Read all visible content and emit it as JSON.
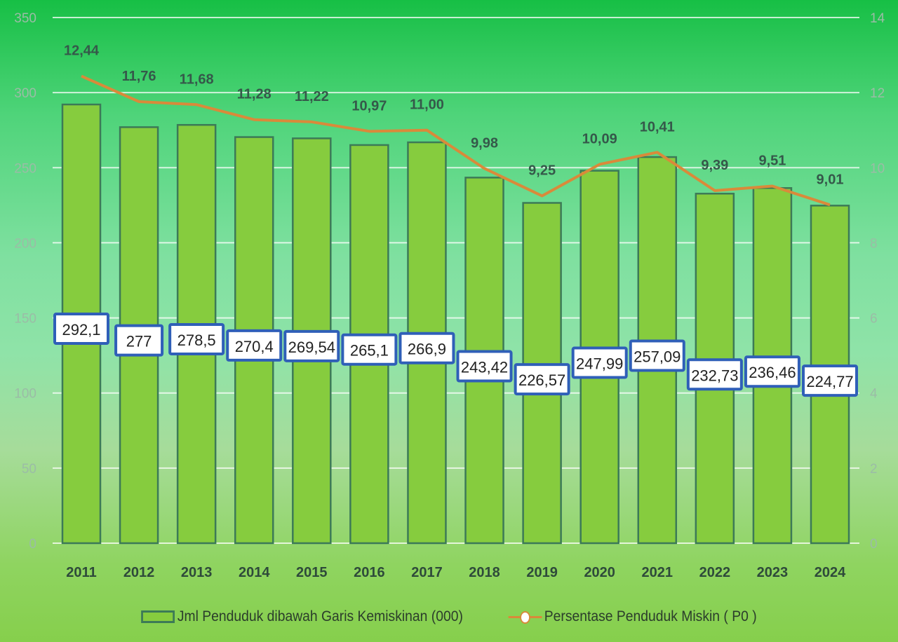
{
  "chart_data": {
    "type": "bar+line",
    "categories": [
      "2011",
      "2012",
      "2013",
      "2014",
      "2015",
      "2016",
      "2017",
      "2018",
      "2019",
      "2020",
      "2021",
      "2022",
      "2023",
      "2024"
    ],
    "series": [
      {
        "name": "Jml Penduduk dibawah Garis Kemiskinan (000)",
        "type": "bar",
        "axis": "left",
        "values": [
          292.1,
          277,
          278.5,
          270.4,
          269.54,
          265.1,
          266.9,
          243.42,
          226.57,
          247.99,
          257.09,
          232.73,
          236.46,
          224.77
        ],
        "labels": [
          "292,1",
          "277",
          "278,5",
          "270,4",
          "269,54",
          "265,1",
          "266,9",
          "243,42",
          "226,57",
          "247,99",
          "257,09",
          "232,73",
          "236,46",
          "224,77"
        ],
        "color": "#86cc3e",
        "edge_color": "#3c7a57"
      },
      {
        "name": "Persentase Penduduk Miskin ( P0 )",
        "type": "line",
        "axis": "right",
        "values": [
          12.44,
          11.76,
          11.68,
          11.28,
          11.22,
          10.97,
          11.0,
          9.98,
          9.25,
          10.09,
          10.41,
          9.39,
          9.51,
          9.01
        ],
        "labels": [
          "12,44",
          "11,76",
          "11,68",
          "11,28",
          "11,22",
          "10,97",
          "11,00",
          "9,98",
          "9,25",
          "10,09",
          "10,41",
          "9,39",
          "9,51",
          "9,01"
        ],
        "color": "#d98a3a"
      }
    ],
    "left_axis": {
      "ylim": [
        0,
        350
      ],
      "ticks": [
        "0",
        "50",
        "100",
        "150",
        "200",
        "250",
        "300",
        "350"
      ]
    },
    "right_axis": {
      "ylim": [
        0,
        14
      ],
      "ticks": [
        "0",
        "2",
        "4",
        "6",
        "8",
        "10",
        "12",
        "14"
      ]
    },
    "grid": true,
    "legend_placement": "bottom",
    "label_box_color": "#2f5fb8"
  }
}
